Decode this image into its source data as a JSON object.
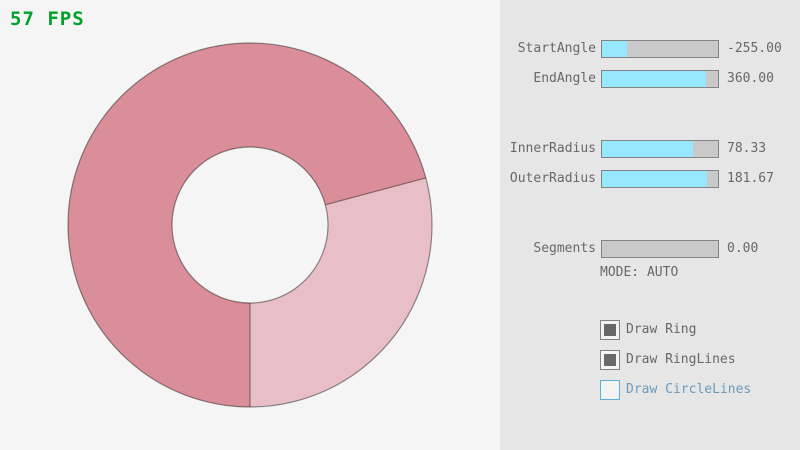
{
  "fps": {
    "label": "57 FPS",
    "color": "#00a22d"
  },
  "ring": {
    "start_angle": -255.0,
    "end_angle": 360.0,
    "inner_radius": 78.33,
    "outer_radius": 181.67,
    "segments": 0,
    "colors": {
      "dark_segment": "#d98e99",
      "light_segment": "#e8bfc7",
      "line": "rgba(0,0,0,0.42)"
    }
  },
  "panel": {
    "sliders": [
      {
        "label": "StartAngle",
        "value": "-255.00",
        "fill_pct": 21.7
      },
      {
        "label": "EndAngle",
        "value": "360.00",
        "fill_pct": 90.0
      },
      {
        "label": "InnerRadius",
        "value": "78.33",
        "fill_pct": 78.3
      },
      {
        "label": "OuterRadius",
        "value": "181.67",
        "fill_pct": 90.8
      },
      {
        "label": "Segments",
        "value": "0.00",
        "fill_pct": 0
      }
    ],
    "mode_label": "MODE: AUTO",
    "checkboxes": [
      {
        "label": "Draw Ring",
        "checked": true
      },
      {
        "label": "Draw RingLines",
        "checked": true
      },
      {
        "label": "Draw CircleLines",
        "checked": false
      }
    ]
  },
  "colors": {
    "canvas_bg": "#f5f5f5",
    "panel_bg": "#e6e6e6",
    "slider_fill": "#97e8ff",
    "slider_track": "#c9c9c9",
    "border": "#838383",
    "text": "#686868",
    "focus_border": "#5bb2d9",
    "focus_text": "#6c9bbc"
  }
}
